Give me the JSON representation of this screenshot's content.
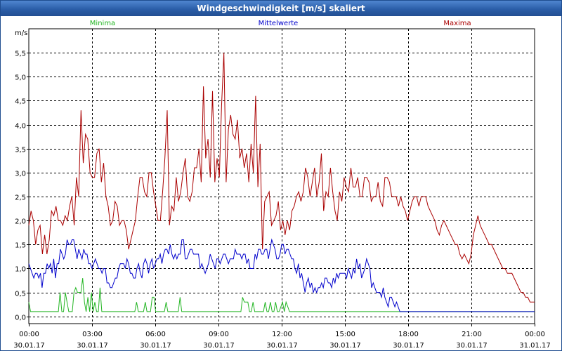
{
  "window": {
    "title": "Windgeschwindigkeit [m/s] skaliert"
  },
  "chart_data": {
    "type": "line",
    "title": "Windgeschwindigkeit [m/s] skaliert",
    "ylabel": "m/s",
    "xlabel": "",
    "ylim": [
      -0.15,
      6.0
    ],
    "yticks": [
      0.0,
      0.5,
      1.0,
      1.5,
      2.0,
      2.5,
      3.0,
      3.5,
      4.0,
      4.5,
      5.0,
      5.5
    ],
    "ytick_labels": [
      "0,0",
      "0,5",
      "1,0",
      "1,5",
      "2,0",
      "2,5",
      "3,0",
      "3,5",
      "4,0",
      "4,5",
      "5,0",
      "5,5"
    ],
    "xlim_hours": [
      0,
      24
    ],
    "xticks": [
      {
        "hour": 0,
        "time": "00:00",
        "date": "30.01.17"
      },
      {
        "hour": 3,
        "time": "03:00",
        "date": "30.01.17"
      },
      {
        "hour": 6,
        "time": "06:00",
        "date": "30.01.17"
      },
      {
        "hour": 9,
        "time": "09:00",
        "date": "30.01.17"
      },
      {
        "hour": 12,
        "time": "12:00",
        "date": "30.01.17"
      },
      {
        "hour": 15,
        "time": "15:00",
        "date": "30.01.17"
      },
      {
        "hour": 18,
        "time": "18:00",
        "date": "30.01.17"
      },
      {
        "hour": 21,
        "time": "21:00",
        "date": "30.01.17"
      },
      {
        "hour": 24,
        "time": "00:00",
        "date": "31.01.17"
      }
    ],
    "grid": true,
    "series": [
      {
        "name": "Minima",
        "color": "#22b522",
        "values": [
          0.3,
          0.1,
          0.1,
          0.1,
          0.1,
          0.1,
          0.1,
          0.1,
          0.1,
          0.1,
          0.1,
          0.1,
          0.1,
          0.1,
          0.1,
          0.1,
          0.1,
          0.1,
          0.5,
          0.1,
          0.1,
          0.5,
          0.3,
          0.1,
          0.1,
          0.1,
          0.5,
          0.6,
          0.5,
          0.5,
          0.5,
          0.8,
          0.3,
          0.1,
          0.4,
          0.1,
          0.5,
          0.1,
          0.3,
          0.1,
          0.1,
          0.6,
          0.1,
          0.1,
          0.1,
          0.1,
          0.1,
          0.1,
          0.1,
          0.1,
          0.1,
          0.1,
          0.1,
          0.1,
          0.1,
          0.1,
          0.1,
          0.1,
          0.1,
          0.1,
          0.1,
          0.1,
          0.3,
          0.1,
          0.1,
          0.1,
          0.1,
          0.3,
          0.1,
          0.1,
          0.1,
          0.4,
          0.4,
          0.1,
          0.1,
          0.1,
          0.1,
          0.1,
          0.1,
          0.3,
          0.1,
          0.1,
          0.1,
          0.1,
          0.1,
          0.1,
          0.1,
          0.4,
          0.1,
          0.1,
          0.1,
          0.1,
          0.1,
          0.1,
          0.1,
          0.1,
          0.1,
          0.1,
          0.1,
          0.1,
          0.1,
          0.1,
          0.1,
          0.1,
          0.1,
          0.1,
          0.1,
          0.1,
          0.1,
          0.1,
          0.1,
          0.1,
          0.1,
          0.1,
          0.1,
          0.1,
          0.1,
          0.1,
          0.1,
          0.1,
          0.1,
          0.1,
          0.1,
          0.4,
          0.3,
          0.3,
          0.3,
          0.1,
          0.1,
          0.3,
          0.1,
          0.1,
          0.1,
          0.1,
          0.1,
          0.1,
          0.3,
          0.1,
          0.1,
          0.3,
          0.1,
          0.1,
          0.3,
          0.1,
          0.1,
          0.2,
          0.3,
          0.1,
          0.3,
          0.2,
          0.1,
          0.1,
          0.1,
          0.1,
          0.1,
          0.1,
          0.1,
          0.1,
          0.1,
          0.1,
          0.1,
          0.1,
          0.1,
          0.1,
          0.1,
          0.1,
          0.1,
          0.1,
          0.1,
          0.1,
          0.1,
          0.1,
          0.1,
          0.1,
          0.1,
          0.1,
          0.1,
          0.1,
          0.1,
          0.1,
          0.1,
          0.1,
          0.1,
          0.1,
          0.1,
          0.1,
          0.1,
          0.1,
          0.1,
          0.1,
          0.1,
          0.1,
          0.1,
          0.1,
          0.1,
          0.1,
          0.1,
          0.1,
          0.1,
          0.1,
          0.1,
          0.1,
          0.1,
          0.1,
          0.1,
          0.1,
          0.1,
          0.1,
          0.1,
          0.1,
          0.1,
          0.1,
          0.1,
          0.1,
          0.1,
          0.1,
          0.1,
          0.1,
          0.1,
          0.1,
          0.1,
          0.1,
          0.1,
          0.1,
          0.1,
          0.1,
          0.1,
          0.1,
          0.1,
          0.1,
          0.1,
          0.1,
          0.1,
          0.1,
          0.1,
          0.1,
          0.1,
          0.1,
          0.1,
          0.1,
          0.1,
          0.1,
          0.1,
          0.1,
          0.1,
          0.1,
          0.1,
          0.1,
          0.1,
          0.1,
          0.1,
          0.1,
          0.1,
          0.1,
          0.1,
          0.1,
          0.1,
          0.1,
          0.1,
          0.1,
          0.1,
          0.1,
          0.1,
          0.1,
          0.1,
          0.1,
          0.1,
          0.1,
          0.1,
          0.1,
          0.1,
          0.1,
          0.1,
          0.1,
          0.1,
          0.1,
          0.1,
          0.1,
          0.1,
          0.1,
          0.1,
          0.1,
          0.1,
          0.1,
          0.1,
          0.1,
          0.1,
          0.1,
          0.1,
          0.1,
          0.1,
          0.1
        ]
      },
      {
        "name": "Mittelwerte",
        "color": "#0000cc",
        "values": [
          1.1,
          1.0,
          0.9,
          0.8,
          0.9,
          0.9,
          0.8,
          0.9,
          0.6,
          0.9,
          0.9,
          1.1,
          1.0,
          1.1,
          0.9,
          1.2,
          0.8,
          1.1,
          1.1,
          1.4,
          1.3,
          1.2,
          1.3,
          1.6,
          1.5,
          1.5,
          1.6,
          1.6,
          1.4,
          1.2,
          1.4,
          1.3,
          1.2,
          1.4,
          1.3,
          1.3,
          1.1,
          1.1,
          1.0,
          1.1,
          1.2,
          1.1,
          1.0,
          1.0,
          0.9,
          1.0,
          1.0,
          0.7,
          0.7,
          0.6,
          0.6,
          0.7,
          0.8,
          0.8,
          1.0,
          1.1,
          1.1,
          1.1,
          1.0,
          1.2,
          1.1,
          0.9,
          0.9,
          0.8,
          0.8,
          1.0,
          1.1,
          0.9,
          0.8,
          1.1,
          1.2,
          1.1,
          0.9,
          1.1,
          1.2,
          1.0,
          1.1,
          1.2,
          1.2,
          1.3,
          1.1,
          1.3,
          1.4,
          1.4,
          1.3,
          1.5,
          1.3,
          1.2,
          1.3,
          1.2,
          1.3,
          1.3,
          1.6,
          1.6,
          1.2,
          1.2,
          1.3,
          1.4,
          1.4,
          1.3,
          1.3,
          1.3,
          1.3,
          1.0,
          1.1,
          1.0,
          0.9,
          1.0,
          1.1,
          1.3,
          1.2,
          1.1,
          1.0,
          1.2,
          1.2,
          1.1,
          1.2,
          1.3,
          1.3,
          1.2,
          1.1,
          1.2,
          1.2,
          1.2,
          1.4,
          1.3,
          1.3,
          1.3,
          1.2,
          1.3,
          1.3,
          1.1,
          1.2,
          1.0,
          1.0,
          1.0,
          1.3,
          1.2,
          1.4,
          1.4,
          1.3,
          1.3,
          1.4,
          1.4,
          1.2,
          1.4,
          1.6,
          1.5,
          1.4,
          1.2,
          1.2,
          1.3,
          1.5,
          1.5,
          1.3,
          1.4,
          1.4,
          1.3,
          1.2,
          1.2,
          1.0,
          0.9,
          1.1,
          0.8,
          0.9,
          0.7,
          0.5,
          0.7,
          0.8,
          0.6,
          0.7,
          0.5,
          0.6,
          0.5,
          0.6,
          0.6,
          0.7,
          0.6,
          0.8,
          0.8,
          0.7,
          0.7,
          0.6,
          0.8,
          0.7,
          0.9,
          0.8,
          0.9,
          0.9,
          0.9,
          0.9,
          0.8,
          1.0,
          0.9,
          0.8,
          1.0,
          0.9,
          1.2,
          1.0,
          1.1,
          0.8,
          0.9,
          1.0,
          1.2,
          1.1,
          1.0,
          0.6,
          0.7,
          0.6,
          0.5,
          0.5,
          0.5,
          0.4,
          0.6,
          0.4,
          0.3,
          0.2,
          0.4,
          0.4,
          0.3,
          0.2,
          0.3,
          0.2,
          0.1,
          0.1,
          0.1,
          0.1,
          0.1,
          0.1,
          0.1,
          0.1,
          0.1,
          0.1,
          0.1,
          0.1,
          0.1,
          0.1,
          0.1,
          0.1,
          0.1,
          0.1,
          0.1,
          0.1,
          0.1,
          0.1,
          0.1,
          0.1,
          0.1,
          0.1,
          0.1,
          0.1,
          0.1,
          0.1,
          0.1,
          0.1,
          0.1,
          0.1,
          0.1,
          0.1,
          0.1,
          0.1,
          0.1,
          0.1,
          0.1,
          0.1,
          0.1,
          0.1,
          0.1,
          0.1,
          0.1,
          0.1,
          0.1,
          0.1,
          0.1,
          0.1,
          0.1,
          0.1,
          0.1,
          0.1,
          0.1,
          0.1,
          0.1,
          0.1,
          0.1,
          0.1,
          0.1,
          0.1,
          0.1,
          0.1,
          0.1,
          0.1,
          0.1,
          0.1,
          0.1,
          0.1,
          0.1,
          0.1,
          0.1,
          0.1,
          0.1,
          0.1,
          0.1,
          0.1,
          0.1,
          0.1
        ]
      },
      {
        "name": "Maxima",
        "color": "#aa0000",
        "values": [
          1.9,
          2.2,
          2.0,
          1.5,
          1.8,
          1.9,
          1.3,
          1.7,
          1.3,
          1.6,
          2.2,
          2.1,
          2.3,
          2.0,
          2.0,
          1.9,
          2.1,
          2.0,
          2.3,
          2.5,
          1.9,
          2.9,
          2.5,
          4.3,
          3.2,
          3.8,
          3.7,
          3.0,
          2.9,
          2.9,
          3.4,
          3.5,
          2.8,
          3.2,
          2.5,
          2.3,
          1.9,
          2.0,
          2.4,
          2.3,
          1.9,
          2.0,
          2.0,
          1.8,
          1.4,
          1.6,
          1.8,
          2.0,
          2.5,
          2.9,
          2.9,
          2.6,
          2.5,
          3.0,
          3.0,
          2.6,
          2.3,
          2.0,
          2.0,
          2.6,
          3.3,
          4.3,
          1.9,
          2.3,
          2.2,
          2.9,
          2.4,
          2.6,
          3.0,
          3.3,
          2.5,
          2.4,
          2.6,
          3.1,
          3.1,
          3.5,
          2.8,
          4.8,
          3.3,
          3.7,
          2.9,
          4.7,
          2.8,
          3.3,
          2.9,
          4.4,
          5.5,
          2.8,
          3.9,
          4.2,
          3.8,
          3.7,
          4.1,
          3.3,
          3.5,
          3.1,
          3.4,
          2.8,
          3.6,
          3.0,
          4.6,
          2.7,
          3.6,
          1.4,
          2.4,
          2.5,
          2.6,
          1.9,
          2.0,
          2.1,
          2.4,
          1.8,
          2.0,
          1.7,
          2.0,
          1.8,
          2.2,
          2.3,
          2.5,
          2.6,
          2.4,
          2.6,
          3.1,
          2.9,
          2.5,
          2.8,
          3.1,
          2.5,
          2.8,
          3.4,
          2.2,
          2.6,
          2.5,
          3.1,
          2.6,
          2.2,
          2.0,
          2.6,
          2.4,
          2.9,
          2.7,
          2.6,
          3.1,
          2.7,
          2.7,
          2.9,
          2.5,
          2.5,
          2.9,
          2.9,
          2.8,
          2.4,
          2.5,
          2.5,
          2.8,
          2.4,
          2.3,
          2.9,
          2.9,
          2.8,
          2.5,
          2.5,
          2.5,
          2.3,
          2.5,
          2.3,
          2.2,
          2.0,
          2.2,
          2.4,
          2.5,
          2.5,
          2.3,
          2.5,
          2.5,
          2.5,
          2.3,
          2.2,
          2.1,
          2.0,
          1.8,
          1.7,
          1.9,
          2.0,
          1.9,
          1.8,
          1.7,
          1.6,
          1.5,
          1.5,
          1.3,
          1.2,
          1.3,
          1.2,
          1.1,
          1.3,
          1.7,
          1.9,
          2.1,
          1.9,
          1.8,
          1.7,
          1.6,
          1.5,
          1.5,
          1.4,
          1.3,
          1.2,
          1.1,
          1.0,
          1.0,
          0.9,
          0.9,
          0.9,
          0.8,
          0.7,
          0.6,
          0.5,
          0.5,
          0.4,
          0.4,
          0.3,
          0.3,
          0.3
        ]
      }
    ]
  }
}
